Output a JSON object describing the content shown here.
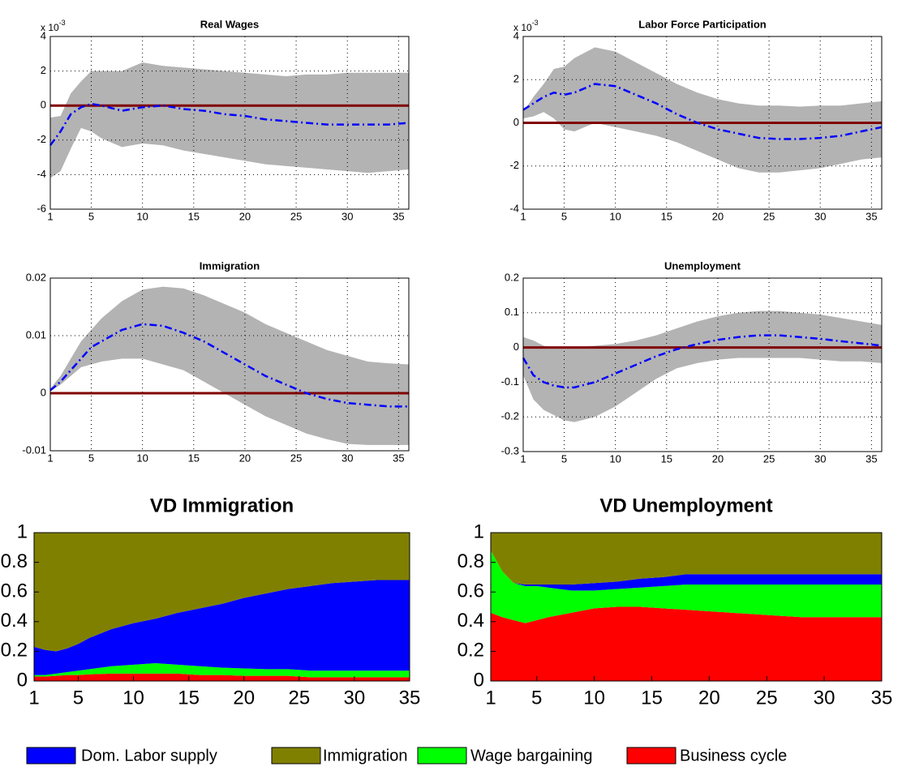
{
  "chart_data": [
    {
      "type": "line",
      "title": "Real Wages",
      "y_multiplier": {
        "base": "x 10",
        "exponent": "-3"
      },
      "x": [
        1,
        2,
        3,
        4,
        5,
        6,
        8,
        10,
        12,
        14,
        16,
        18,
        20,
        22,
        24,
        26,
        28,
        30,
        32,
        34,
        36
      ],
      "values": [
        -2.3,
        -1.5,
        -0.5,
        -0.1,
        0.1,
        0,
        -0.3,
        -0.1,
        0,
        -0.2,
        -0.3,
        -0.5,
        -0.6,
        -0.8,
        -0.9,
        -1.0,
        -1.1,
        -1.1,
        -1.1,
        -1.1,
        -1.0
      ],
      "band": {
        "upper": [
          -0.7,
          -0.6,
          0.7,
          1.4,
          2.0,
          2.0,
          2.0,
          2.5,
          2.3,
          2.2,
          2.1,
          2.0,
          1.9,
          1.8,
          1.7,
          1.8,
          1.8,
          1.9,
          1.9,
          1.9,
          1.9
        ],
        "lower": [
          -4.2,
          -3.8,
          -2.5,
          -1.3,
          -1.5,
          -1.9,
          -2.4,
          -2.2,
          -2.3,
          -2.6,
          -2.8,
          -3.0,
          -3.2,
          -3.4,
          -3.5,
          -3.6,
          -3.7,
          -3.8,
          -3.9,
          -3.8,
          -3.7
        ]
      },
      "color": "#0000ff",
      "band_color": "#b3b3b3",
      "zero_line_color": "#800000",
      "xlim": [
        1,
        36
      ],
      "ylim": [
        -6,
        4
      ],
      "xticks": [
        1,
        5,
        10,
        15,
        20,
        25,
        30,
        35
      ],
      "yticks": [
        -6,
        -4,
        -2,
        0,
        2,
        4
      ],
      "grid": true
    },
    {
      "type": "line",
      "title": "Labor Force Participation",
      "y_multiplier": {
        "base": "x 10",
        "exponent": "-3"
      },
      "x": [
        1,
        2,
        3,
        4,
        5,
        6,
        8,
        10,
        12,
        14,
        16,
        18,
        20,
        22,
        24,
        26,
        28,
        30,
        32,
        34,
        36
      ],
      "values": [
        0.6,
        0.9,
        1.2,
        1.4,
        1.3,
        1.4,
        1.8,
        1.7,
        1.3,
        0.9,
        0.4,
        0,
        -0.3,
        -0.5,
        -0.7,
        -0.75,
        -0.75,
        -0.7,
        -0.6,
        -0.4,
        -0.2
      ],
      "band": {
        "upper": [
          0.5,
          1.2,
          1.8,
          2.5,
          2.6,
          3.0,
          3.5,
          3.3,
          2.8,
          2.3,
          1.8,
          1.4,
          1.1,
          0.9,
          0.8,
          0.8,
          0.75,
          0.8,
          0.8,
          0.9,
          1.0
        ],
        "lower": [
          0.2,
          0.3,
          0.5,
          0.2,
          -0.3,
          -0.4,
          0,
          -0.2,
          -0.4,
          -0.6,
          -0.9,
          -1.3,
          -1.7,
          -2.1,
          -2.3,
          -2.3,
          -2.2,
          -2.1,
          -1.9,
          -1.7,
          -1.6
        ]
      },
      "color": "#0000ff",
      "band_color": "#b3b3b3",
      "zero_line_color": "#800000",
      "xlim": [
        1,
        36
      ],
      "ylim": [
        -4,
        4
      ],
      "xticks": [
        1,
        5,
        10,
        15,
        20,
        25,
        30,
        35
      ],
      "yticks": [
        -4,
        -2,
        0,
        2,
        4
      ],
      "grid": true
    },
    {
      "type": "line",
      "title": "Immigration",
      "x": [
        1,
        2,
        3,
        4,
        5,
        6,
        8,
        10,
        12,
        14,
        16,
        18,
        20,
        22,
        24,
        26,
        28,
        30,
        32,
        34,
        36
      ],
      "values": [
        0.0005,
        0.002,
        0.004,
        0.006,
        0.008,
        0.009,
        0.011,
        0.012,
        0.0117,
        0.0105,
        0.009,
        0.007,
        0.005,
        0.003,
        0.0015,
        0,
        -0.001,
        -0.0017,
        -0.002,
        -0.0023,
        -0.0023
      ],
      "band": {
        "upper": [
          0.0008,
          0.003,
          0.006,
          0.009,
          0.011,
          0.013,
          0.016,
          0.018,
          0.0185,
          0.0182,
          0.017,
          0.0155,
          0.014,
          0.012,
          0.0105,
          0.009,
          0.0075,
          0.0065,
          0.0055,
          0.0052,
          0.005
        ],
        "lower": [
          0.0003,
          0.0015,
          0.003,
          0.0045,
          0.005,
          0.0055,
          0.006,
          0.006,
          0.005,
          0.004,
          0.002,
          0,
          -0.002,
          -0.004,
          -0.0055,
          -0.007,
          -0.008,
          -0.0088,
          -0.009,
          -0.009,
          -0.009
        ]
      },
      "color": "#0000ff",
      "band_color": "#b3b3b3",
      "zero_line_color": "#800000",
      "xlim": [
        1,
        36
      ],
      "ylim": [
        -0.01,
        0.02
      ],
      "xticks": [
        1,
        5,
        10,
        15,
        20,
        25,
        30,
        35
      ],
      "yticks": [
        -0.01,
        0,
        0.01,
        0.02
      ],
      "grid": true
    },
    {
      "type": "line",
      "title": "Unemployment",
      "x": [
        1,
        2,
        3,
        4,
        5,
        6,
        8,
        10,
        12,
        14,
        16,
        18,
        20,
        22,
        24,
        26,
        28,
        30,
        32,
        34,
        36
      ],
      "values": [
        -0.03,
        -0.08,
        -0.1,
        -0.11,
        -0.115,
        -0.115,
        -0.1,
        -0.075,
        -0.05,
        -0.025,
        -0.005,
        0.01,
        0.022,
        0.03,
        0.035,
        0.035,
        0.03,
        0.025,
        0.018,
        0.012,
        0.005
      ],
      "band": {
        "upper": [
          0.03,
          0.02,
          0.005,
          0,
          0,
          0,
          0.005,
          0.01,
          0.02,
          0.035,
          0.055,
          0.075,
          0.09,
          0.1,
          0.105,
          0.105,
          0.1,
          0.095,
          0.085,
          0.075,
          0.065
        ],
        "lower": [
          -0.08,
          -0.15,
          -0.18,
          -0.195,
          -0.21,
          -0.215,
          -0.2,
          -0.17,
          -0.13,
          -0.09,
          -0.06,
          -0.045,
          -0.035,
          -0.03,
          -0.03,
          -0.03,
          -0.03,
          -0.035,
          -0.04,
          -0.04,
          -0.045
        ]
      },
      "color": "#0000ff",
      "band_color": "#b3b3b3",
      "zero_line_color": "#800000",
      "xlim": [
        1,
        36
      ],
      "ylim": [
        -0.3,
        0.2
      ],
      "xticks": [
        1,
        5,
        10,
        15,
        20,
        25,
        30,
        35
      ],
      "yticks": [
        -0.3,
        -0.2,
        -0.1,
        0,
        0.1,
        0.2
      ],
      "grid": true
    },
    {
      "type": "area",
      "stacked": true,
      "title": "VD Immigration",
      "x": [
        1,
        2,
        3,
        4,
        5,
        6,
        8,
        10,
        12,
        14,
        16,
        18,
        20,
        22,
        24,
        26,
        28,
        30,
        32,
        35
      ],
      "series": [
        {
          "name": "Business cycle",
          "color": "#ff0000",
          "values": [
            0.03,
            0.03,
            0.035,
            0.04,
            0.04,
            0.045,
            0.05,
            0.05,
            0.05,
            0.05,
            0.04,
            0.04,
            0.035,
            0.035,
            0.035,
            0.025,
            0.025,
            0.025,
            0.025,
            0.025
          ]
        },
        {
          "name": "Wage bargaining",
          "color": "#00ff00",
          "values": [
            0.01,
            0.01,
            0.015,
            0.02,
            0.03,
            0.035,
            0.05,
            0.06,
            0.07,
            0.06,
            0.06,
            0.05,
            0.05,
            0.045,
            0.045,
            0.045,
            0.045,
            0.045,
            0.045,
            0.045
          ]
        },
        {
          "name": "Dom. Labor supply",
          "color": "#0000ff",
          "values": [
            0.19,
            0.17,
            0.15,
            0.16,
            0.18,
            0.21,
            0.25,
            0.28,
            0.3,
            0.35,
            0.39,
            0.43,
            0.475,
            0.51,
            0.54,
            0.57,
            0.59,
            0.6,
            0.61,
            0.61
          ]
        },
        {
          "name": "Immigration",
          "color": "#808000",
          "values": [
            0.77,
            0.79,
            0.8,
            0.78,
            0.75,
            0.71,
            0.65,
            0.61,
            0.58,
            0.54,
            0.51,
            0.48,
            0.44,
            0.41,
            0.38,
            0.36,
            0.34,
            0.33,
            0.32,
            0.32
          ]
        }
      ],
      "xlim": [
        1,
        35
      ],
      "ylim": [
        0,
        1
      ],
      "xticks": [
        1,
        5,
        10,
        15,
        20,
        25,
        30,
        35
      ],
      "yticks": [
        0,
        0.2,
        0.4,
        0.6,
        0.8,
        1
      ],
      "grid": false
    },
    {
      "type": "area",
      "stacked": true,
      "title": "VD Unemployment",
      "x": [
        1,
        2,
        3,
        4,
        5,
        6,
        8,
        10,
        12,
        14,
        16,
        18,
        20,
        22,
        24,
        26,
        28,
        30,
        32,
        35
      ],
      "series": [
        {
          "color": "#ff0000",
          "values": [
            0.46,
            0.43,
            0.41,
            0.39,
            0.41,
            0.43,
            0.46,
            0.49,
            0.5,
            0.5,
            0.49,
            0.48,
            0.47,
            0.46,
            0.45,
            0.44,
            0.43,
            0.43,
            0.43,
            0.43
          ]
        },
        {
          "color": "#00ff00",
          "values": [
            0.42,
            0.31,
            0.25,
            0.25,
            0.23,
            0.2,
            0.15,
            0.12,
            0.12,
            0.13,
            0.15,
            0.17,
            0.18,
            0.19,
            0.2,
            0.21,
            0.22,
            0.22,
            0.22,
            0.22
          ]
        },
        {
          "color": "#0000ff",
          "values": [
            0,
            0,
            0,
            0.01,
            0.01,
            0.02,
            0.04,
            0.05,
            0.05,
            0.06,
            0.06,
            0.07,
            0.07,
            0.07,
            0.07,
            0.07,
            0.07,
            0.07,
            0.07,
            0.07
          ]
        },
        {
          "color": "#808000",
          "values": [
            0.12,
            0.26,
            0.34,
            0.35,
            0.35,
            0.35,
            0.35,
            0.34,
            0.33,
            0.31,
            0.3,
            0.28,
            0.28,
            0.28,
            0.28,
            0.28,
            0.28,
            0.28,
            0.28,
            0.28
          ]
        }
      ],
      "xlim": [
        1,
        35
      ],
      "ylim": [
        0,
        1
      ],
      "xticks": [
        1,
        5,
        10,
        15,
        20,
        25,
        30,
        35
      ],
      "yticks": [
        0,
        0.2,
        0.4,
        0.6,
        0.8,
        1
      ],
      "grid": false
    }
  ]
}
